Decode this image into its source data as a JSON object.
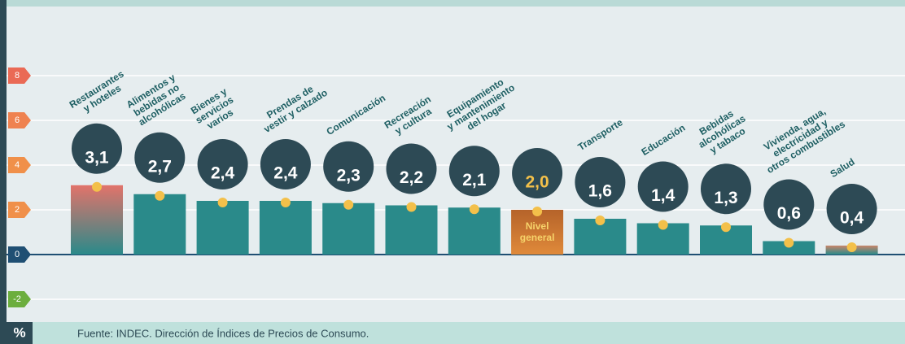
{
  "chart_data": {
    "type": "bar",
    "categories": [
      "Restaurantes\ny hoteles",
      "Alimentos y\nbebidas no\nalcohólicas",
      "Bienes y\nservicios\nvarios",
      "Prendas de\nvestir y calzado",
      "Comunicación",
      "Recreación\ny cultura",
      "Equipamiento\ny mantenimiento\ndel hogar",
      null,
      "Transporte",
      "Educación",
      "Bebidas\nalcohólicas\ny tabaco",
      "Vivienda, agua,\nelectricidad y\notros combustibles",
      "Salud"
    ],
    "values": [
      3.1,
      2.7,
      2.4,
      2.4,
      2.3,
      2.2,
      2.1,
      2.0,
      1.6,
      1.4,
      1.3,
      0.6,
      0.4
    ],
    "value_labels": [
      "3,1",
      "2,7",
      "2,4",
      "2,4",
      "2,3",
      "2,2",
      "2,1",
      "2,0",
      "1,6",
      "1,4",
      "1,3",
      "0,6",
      "0,4"
    ],
    "highlight_label": "Nivel general",
    "color": "#2a8a8a",
    "ylim": [
      -2,
      8
    ],
    "yticks": [
      -2,
      0,
      2,
      4,
      6,
      8
    ],
    "ytick_colors": [
      "#6cae3e",
      "#1f4f73",
      "#f0904a",
      "#f0904a",
      "#ef8250",
      "#ea6a55"
    ],
    "y_unit": "%",
    "source": "Fuente: INDEC. Dirección de Índices de Precios de Consumo.",
    "grid": true
  }
}
